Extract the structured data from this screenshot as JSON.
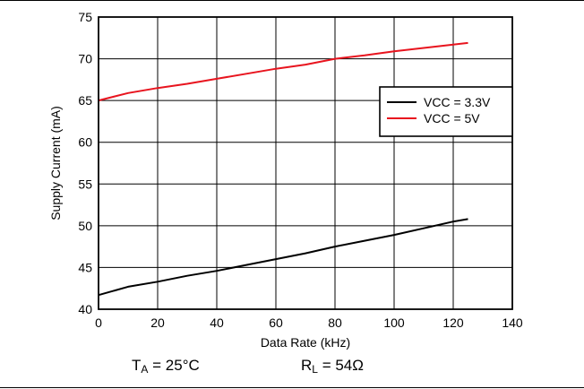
{
  "chart_data": {
    "type": "line",
    "xlabel": "Data Rate (kHz)",
    "ylabel": "Supply Current (mA)",
    "xlim": [
      0,
      140
    ],
    "ylim": [
      40,
      75
    ],
    "x_ticks": [
      0,
      20,
      40,
      60,
      80,
      100,
      120,
      140
    ],
    "y_ticks": [
      40,
      45,
      50,
      55,
      60,
      65,
      70,
      75
    ],
    "grid": true,
    "legend_position": "right",
    "series": [
      {
        "name": "VCC = 3.3V",
        "color": "#000000",
        "x": [
          0,
          10,
          20,
          30,
          40,
          50,
          60,
          70,
          80,
          90,
          100,
          110,
          120,
          125
        ],
        "y": [
          41.7,
          42.7,
          43.3,
          44.0,
          44.6,
          45.3,
          46.0,
          46.7,
          47.5,
          48.2,
          48.9,
          49.7,
          50.5,
          50.8
        ]
      },
      {
        "name": "VCC = 5V",
        "color": "#e8141e",
        "x": [
          0,
          10,
          20,
          30,
          40,
          50,
          60,
          70,
          80,
          90,
          100,
          110,
          120,
          125
        ],
        "y": [
          65.0,
          65.9,
          66.5,
          67.0,
          67.6,
          68.2,
          68.8,
          69.3,
          70.0,
          70.4,
          70.9,
          71.3,
          71.7,
          71.9
        ]
      }
    ]
  },
  "conditions": {
    "ta_symbol": "T",
    "ta_subscript": "A",
    "ta_value": " = 25°C",
    "rl_symbol": "R",
    "rl_subscript": "L",
    "rl_value": " = 54Ω"
  }
}
